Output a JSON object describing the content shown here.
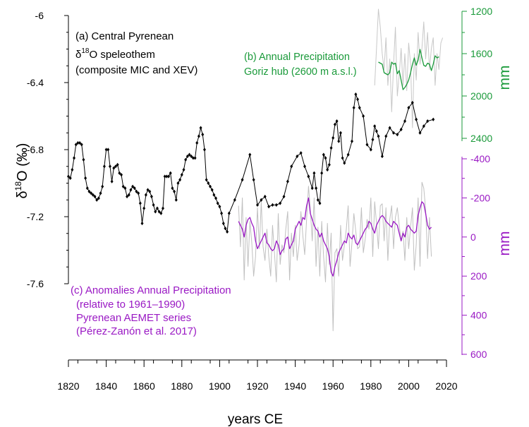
{
  "chart_data": {
    "type": "line",
    "xlabel": "years CE",
    "xlim": [
      1820,
      2020
    ],
    "xticks": [
      "1820",
      "1840",
      "1860",
      "1880",
      "1900",
      "1920",
      "1940",
      "1960",
      "1980",
      "2000",
      "2020"
    ],
    "left_axis": {
      "label_main": "δ",
      "label_sup": "18",
      "label_tail": "O (‰)",
      "ylim": [
        -7.6,
        -6
      ],
      "ticks": [
        "-6",
        "-6.4",
        "-6.8",
        "-7.2",
        "-7.6"
      ]
    },
    "right_axis_b": {
      "label": "mm",
      "ylim_inverted": [
        1200,
        2400
      ],
      "ticks": [
        "1200",
        "1600",
        "2000",
        "2400"
      ],
      "color": "#1a9a3a"
    },
    "right_axis_c": {
      "label": "mm",
      "ylim_inverted": [
        -400,
        600
      ],
      "ticks": [
        "-400",
        "-200",
        "0",
        "200",
        "400",
        "600"
      ],
      "color": "#9a19c4"
    },
    "annotations": {
      "a_line1": "(a) Central Pyrenean",
      "a_line2_pre": "δ",
      "a_line2_sup": "18",
      "a_line2_post": "O speleothem",
      "a_line3": "(composite MIC and XEV)",
      "b_line1": "(b) Annual Precipitation",
      "b_line2": "Goriz hub (2600 m a.s.l.)",
      "c_line1": "(c) Anomalies Annual Precipitation",
      "c_line2": "(relative to 1961–1990)",
      "c_line3": "Pyrenean AEMET series",
      "c_line4": "(Pérez-Zanón et al. 2017)"
    },
    "series": [
      {
        "name": "delta18O speleothem",
        "color": "#000000",
        "x": [
          1820,
          1821,
          1822,
          1823,
          1824,
          1825,
          1826,
          1827,
          1828,
          1829,
          1830,
          1831,
          1832,
          1833,
          1834,
          1835,
          1836,
          1837,
          1838,
          1839,
          1840,
          1841,
          1842,
          1843,
          1844,
          1845,
          1846,
          1847,
          1848,
          1849,
          1850,
          1851,
          1852,
          1853,
          1854,
          1855,
          1856,
          1857,
          1858,
          1859,
          1860,
          1861,
          1862,
          1863,
          1864,
          1865,
          1866,
          1867,
          1868,
          1869,
          1870,
          1871,
          1872,
          1873,
          1874,
          1875,
          1876,
          1877,
          1878,
          1879,
          1880,
          1881,
          1882,
          1883,
          1884,
          1885,
          1886,
          1887,
          1888,
          1889,
          1890,
          1891,
          1892,
          1893,
          1894,
          1895,
          1896,
          1897,
          1898,
          1899,
          1900,
          1901,
          1902,
          1903,
          1904,
          1905,
          1908,
          1912,
          1916,
          1918,
          1920,
          1922,
          1924,
          1926,
          1928,
          1930,
          1932,
          1934,
          1936,
          1938,
          1941,
          1943,
          1945,
          1947,
          1949,
          1950,
          1951,
          1952,
          1953,
          1954,
          1955,
          1956,
          1957,
          1958,
          1959,
          1960,
          1961,
          1962,
          1963,
          1964,
          1965,
          1966,
          1968,
          1970,
          1971,
          1972,
          1973,
          1974,
          1976,
          1978,
          1980,
          1981,
          1982,
          1983,
          1984,
          1986,
          1988,
          1990,
          1992,
          1994,
          1996,
          1998,
          2000,
          2002,
          2004,
          2006,
          2008,
          2010,
          2013
        ],
        "values": [
          -6.96,
          -6.97,
          -6.92,
          -6.85,
          -6.77,
          -6.76,
          -6.76,
          -6.77,
          -6.86,
          -6.97,
          -7.03,
          -7.05,
          -7.06,
          -7.07,
          -7.08,
          -7.1,
          -7.09,
          -7.06,
          -7.02,
          -6.9,
          -6.8,
          -6.8,
          -6.9,
          -6.99,
          -6.91,
          -6.9,
          -6.89,
          -6.94,
          -6.95,
          -7.02,
          -7.03,
          -7.08,
          -7.07,
          -7.04,
          -7.02,
          -7.03,
          -7.05,
          -7.06,
          -7.12,
          -7.24,
          -7.15,
          -7.07,
          -7.04,
          -7.05,
          -7.08,
          -7.13,
          -7.17,
          -7.15,
          -7.17,
          -7.18,
          -7.15,
          -6.96,
          -6.96,
          -6.96,
          -6.94,
          -7.03,
          -7.05,
          -7.1,
          -7.0,
          -6.98,
          -6.95,
          -6.92,
          -6.86,
          -6.84,
          -6.83,
          -6.84,
          -6.85,
          -6.85,
          -6.76,
          -6.72,
          -6.67,
          -6.71,
          -6.8,
          -6.98,
          -7.0,
          -7.02,
          -7.04,
          -7.07,
          -7.09,
          -7.12,
          -7.14,
          -7.18,
          -7.24,
          -7.27,
          -7.29,
          -7.18,
          -7.1,
          -6.98,
          -6.83,
          -6.98,
          -7.13,
          -7.1,
          -7.08,
          -7.14,
          -7.13,
          -7.13,
          -7.12,
          -7.08,
          -6.99,
          -6.9,
          -6.84,
          -6.82,
          -6.9,
          -6.96,
          -7.03,
          -6.94,
          -7.03,
          -7.1,
          -7.12,
          -6.94,
          -6.83,
          -6.85,
          -6.92,
          -6.89,
          -6.79,
          -6.73,
          -6.65,
          -6.63,
          -6.75,
          -6.7,
          -6.85,
          -6.88,
          -6.83,
          -6.75,
          -6.55,
          -6.47,
          -6.5,
          -6.55,
          -6.6,
          -6.77,
          -6.8,
          -6.74,
          -6.66,
          -6.69,
          -6.72,
          -6.84,
          -6.72,
          -6.67,
          -6.7,
          -6.71,
          -6.68,
          -6.63,
          -6.55,
          -6.52,
          -6.62,
          -6.7,
          -6.66,
          -6.63,
          -6.62
        ]
      },
      {
        "name": "Goriz annual precipitation (grey)",
        "color": "#c8c8c8",
        "x": [
          1982,
          1983,
          1984,
          1985,
          1986,
          1987,
          1988,
          1989,
          1990,
          1991,
          1992,
          1993,
          1994,
          1995,
          1996,
          1997,
          1998,
          1999,
          2000,
          2001,
          2002,
          2003,
          2004,
          2005,
          2006,
          2007,
          2008,
          2009,
          2010,
          2011,
          2012,
          2013,
          2014,
          2015,
          2016,
          2017,
          2018
        ],
        "values": [
          1900,
          1550,
          1180,
          1350,
          1600,
          1750,
          1450,
          1900,
          1650,
          2150,
          1700,
          1350,
          2000,
          1800,
          1550,
          1900,
          1600,
          1950,
          1500,
          1700,
          2300,
          1600,
          1850,
          1400,
          1700,
          1550,
          1300,
          1650,
          1400,
          1750,
          1550,
          1450,
          1900,
          1600,
          1750,
          1500,
          1450
        ]
      },
      {
        "name": "Goriz annual precipitation (smoothed)",
        "color": "#1a9a3a",
        "x": [
          1984,
          1985,
          1986,
          1987,
          1988,
          1989,
          1990,
          1991,
          1992,
          1993,
          1994,
          1995,
          1996,
          1997,
          1998,
          1999,
          2000,
          2001,
          2002,
          2003,
          2004,
          2005,
          2006,
          2007,
          2008,
          2009,
          2010,
          2011,
          2012,
          2013,
          2014,
          2015,
          2016
        ],
        "values": [
          1680,
          1690,
          1700,
          1780,
          1790,
          1800,
          1780,
          1680,
          1700,
          1690,
          1790,
          1760,
          1850,
          1940,
          1920,
          1890,
          1850,
          1780,
          1700,
          1640,
          1710,
          1660,
          1560,
          1640,
          1710,
          1720,
          1690,
          1700,
          1760,
          1700,
          1620,
          1640,
          1630
        ]
      },
      {
        "name": "Pyrenean AEMET anomalies (grey)",
        "color": "#c0c0c0",
        "x": [
          1910,
          1911,
          1912,
          1913,
          1914,
          1915,
          1916,
          1917,
          1918,
          1919,
          1920,
          1921,
          1922,
          1923,
          1924,
          1925,
          1926,
          1927,
          1928,
          1929,
          1930,
          1931,
          1932,
          1933,
          1934,
          1935,
          1936,
          1937,
          1938,
          1939,
          1940,
          1941,
          1942,
          1943,
          1944,
          1945,
          1946,
          1947,
          1948,
          1949,
          1950,
          1951,
          1952,
          1953,
          1954,
          1955,
          1956,
          1957,
          1958,
          1959,
          1960,
          1961,
          1962,
          1963,
          1964,
          1965,
          1966,
          1967,
          1968,
          1969,
          1970,
          1971,
          1972,
          1973,
          1974,
          1975,
          1976,
          1977,
          1978,
          1979,
          1980,
          1981,
          1982,
          1983,
          1984,
          1985,
          1986,
          1987,
          1988,
          1989,
          1990,
          1991,
          1992,
          1993,
          1994,
          1995,
          1996,
          1997,
          1998,
          1999,
          2000,
          2001,
          2002,
          2003,
          2004,
          2005,
          2006,
          2007,
          2008,
          2009,
          2010,
          2011,
          2012
        ],
        "values": [
          -160,
          50,
          -200,
          220,
          -100,
          150,
          -80,
          30,
          200,
          100,
          -150,
          60,
          -180,
          50,
          120,
          -40,
          100,
          200,
          -60,
          80,
          230,
          -120,
          140,
          40,
          80,
          -40,
          -130,
          220,
          -20,
          100,
          -60,
          120,
          40,
          -130,
          -10,
          90,
          -90,
          -260,
          -140,
          20,
          -200,
          150,
          -50,
          200,
          -80,
          100,
          230,
          -70,
          140,
          -20,
          480,
          80,
          60,
          200,
          -60,
          120,
          40,
          -40,
          -160,
          150,
          30,
          -120,
          -30,
          60,
          50,
          -150,
          80,
          10,
          -90,
          -40,
          -200,
          100,
          -180,
          -70,
          60,
          -160,
          -170,
          20,
          -150,
          120,
          -90,
          -160,
          60,
          -100,
          -150,
          -60,
          20,
          -30,
          120,
          -100,
          60,
          -50,
          -150,
          170,
          40,
          -200,
          150,
          -280,
          -250,
          -140,
          110,
          -100,
          100
        ]
      },
      {
        "name": "Pyrenean AEMET anomalies (smoothed)",
        "color": "#9a19c4",
        "x": [
          1910,
          1911,
          1912,
          1913,
          1914,
          1915,
          1916,
          1917,
          1918,
          1919,
          1920,
          1921,
          1922,
          1923,
          1924,
          1925,
          1926,
          1927,
          1928,
          1929,
          1930,
          1931,
          1932,
          1933,
          1934,
          1935,
          1936,
          1937,
          1938,
          1939,
          1940,
          1941,
          1942,
          1943,
          1944,
          1945,
          1946,
          1947,
          1948,
          1949,
          1950,
          1951,
          1952,
          1953,
          1954,
          1955,
          1956,
          1957,
          1958,
          1959,
          1960,
          1961,
          1962,
          1963,
          1964,
          1965,
          1966,
          1967,
          1968,
          1969,
          1970,
          1971,
          1972,
          1973,
          1974,
          1975,
          1976,
          1977,
          1978,
          1979,
          1980,
          1981,
          1982,
          1983,
          1984,
          1985,
          1986,
          1987,
          1988,
          1989,
          1990,
          1991,
          1992,
          1993,
          1994,
          1995,
          1996,
          1997,
          1998,
          1999,
          2000,
          2001,
          2002,
          2003,
          2004,
          2005,
          2006,
          2007,
          2008,
          2009,
          2010,
          2011,
          2012
        ],
        "values": [
          -80,
          -60,
          -40,
          0,
          -60,
          -90,
          -100,
          -70,
          -50,
          20,
          60,
          40,
          20,
          0,
          -20,
          30,
          40,
          60,
          70,
          60,
          20,
          40,
          90,
          70,
          60,
          10,
          0,
          60,
          40,
          20,
          -40,
          -60,
          -80,
          -60,
          -100,
          -90,
          -160,
          -200,
          -120,
          -90,
          -60,
          -40,
          -30,
          0,
          -20,
          20,
          40,
          60,
          100,
          180,
          200,
          150,
          120,
          80,
          60,
          40,
          20,
          30,
          -20,
          0,
          10,
          -10,
          30,
          40,
          20,
          0,
          -20,
          -40,
          -50,
          -80,
          -70,
          -40,
          -20,
          -60,
          -80,
          -100,
          -110,
          -100,
          -80,
          -70,
          -60,
          -50,
          -80,
          -70,
          -60,
          -20,
          20,
          -20,
          0,
          -50,
          -60,
          -40,
          -30,
          -20,
          -30,
          -110,
          -150,
          -180,
          -170,
          -120,
          -60,
          -40,
          -50
        ]
      }
    ]
  }
}
